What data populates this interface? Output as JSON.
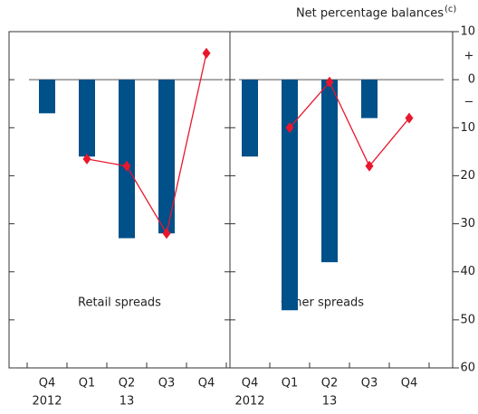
{
  "chart_data": {
    "type": "bar",
    "y_label": "Net percentage balances",
    "y_label_note": "(c)",
    "ylim": [
      -60,
      10
    ],
    "yticks": [
      10,
      0,
      {
        "value": -10,
        "label": "10"
      },
      {
        "value": -20,
        "label": "20"
      },
      {
        "value": -30,
        "label": "30"
      },
      {
        "value": -40,
        "label": "40"
      },
      {
        "value": -50,
        "label": "50"
      },
      {
        "value": -60,
        "label": "60"
      }
    ],
    "sign_labels": [
      "+",
      "−"
    ],
    "panels": [
      {
        "title": "Retail spreads",
        "categories": [
          "Q4",
          "Q1",
          "Q2",
          "Q3",
          "Q4"
        ],
        "years": [
          "2012",
          null,
          "13",
          null,
          null
        ],
        "series": [
          {
            "type": "bar",
            "color": "#00508a",
            "values": [
              -7,
              -16,
              -33,
              -32,
              null
            ]
          },
          {
            "type": "line",
            "color": "#e8172d",
            "values": [
              null,
              -16.5,
              -18,
              -32,
              5.5
            ]
          }
        ]
      },
      {
        "title": "Other spreads",
        "categories": [
          "Q4",
          "Q1",
          "Q2",
          "Q3",
          "Q4"
        ],
        "years": [
          "2012",
          null,
          "13",
          null,
          null
        ],
        "series": [
          {
            "type": "bar",
            "color": "#00508a",
            "values": [
              -16,
              -48,
              -38,
              -8,
              null
            ]
          },
          {
            "type": "line",
            "color": "#e8172d",
            "values": [
              null,
              -10,
              -0.5,
              -18,
              -8
            ]
          }
        ]
      }
    ]
  }
}
